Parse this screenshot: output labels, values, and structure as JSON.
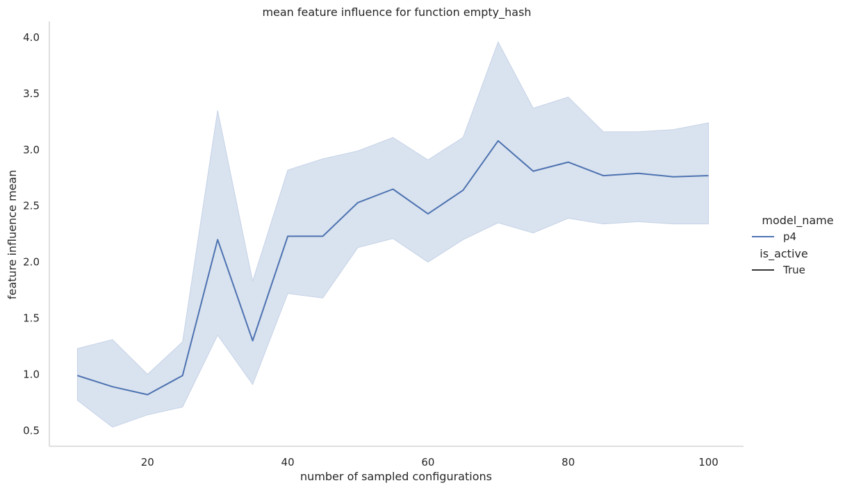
{
  "chart_data": {
    "type": "line",
    "title": "mean feature influence for function empty_hash",
    "xlabel": "number of sampled configurations",
    "ylabel": "feature influence mean",
    "xlim": [
      6,
      105
    ],
    "ylim": [
      0.36,
      4.13
    ],
    "xticks": [
      20,
      40,
      60,
      80,
      100
    ],
    "yticks": [
      0.5,
      1.0,
      1.5,
      2.0,
      2.5,
      3.0,
      3.5,
      4.0
    ],
    "xtick_labels": [
      "20",
      "40",
      "60",
      "80",
      "100"
    ],
    "ytick_labels": [
      "0.5",
      "1.0",
      "1.5",
      "2.0",
      "2.5",
      "3.0",
      "3.5",
      "4.0"
    ],
    "grid": false,
    "legend_placement": "right",
    "legend": {
      "hue_title": "model_name",
      "hue_entries": [
        {
          "label": "p4",
          "color": "#4c72b0"
        }
      ],
      "style_title": "is_active",
      "style_entries": [
        {
          "label": "True",
          "color": "#333333"
        }
      ]
    },
    "series": [
      {
        "name": "p4",
        "color": "#4c72b0",
        "band_color": "#c5d2e6",
        "x": [
          10,
          15,
          20,
          25,
          30,
          35,
          40,
          45,
          50,
          55,
          60,
          65,
          70,
          75,
          80,
          85,
          90,
          95,
          100
        ],
        "y": [
          0.99,
          0.89,
          0.82,
          0.99,
          2.2,
          1.3,
          2.23,
          2.23,
          2.53,
          2.65,
          2.43,
          2.64,
          3.08,
          2.81,
          2.89,
          2.77,
          2.79,
          2.76,
          2.77
        ],
        "upper": [
          1.23,
          1.31,
          1.0,
          1.29,
          3.35,
          1.83,
          2.82,
          2.92,
          2.99,
          3.11,
          2.91,
          3.11,
          3.96,
          3.37,
          3.47,
          3.16,
          3.16,
          3.18,
          3.24
        ],
        "lower": [
          0.77,
          0.53,
          0.64,
          0.71,
          1.35,
          0.91,
          1.72,
          1.68,
          2.13,
          2.21,
          2.0,
          2.2,
          2.35,
          2.26,
          2.39,
          2.34,
          2.36,
          2.34,
          2.34
        ]
      }
    ]
  }
}
